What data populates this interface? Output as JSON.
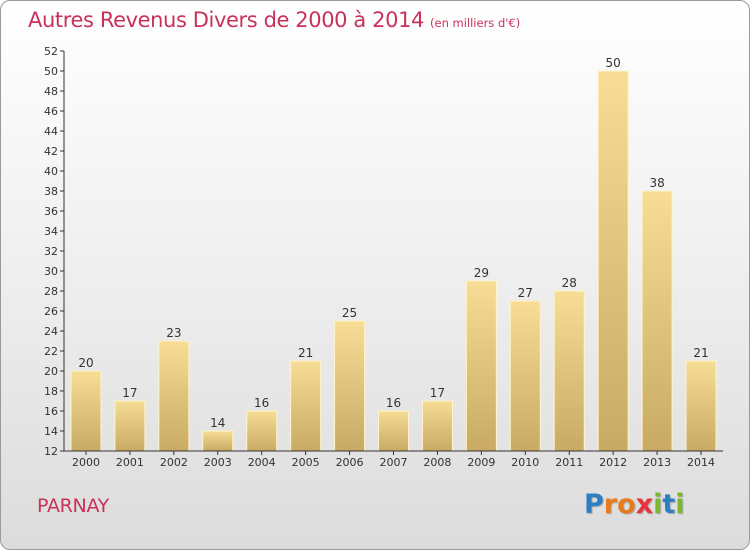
{
  "chart_data": {
    "type": "bar",
    "title": "Autres Revenus Divers de 2000 à 2014",
    "subtitle": "(en milliers d'€)",
    "categories": [
      "2000",
      "2001",
      "2002",
      "2003",
      "2004",
      "2005",
      "2006",
      "2007",
      "2008",
      "2009",
      "2010",
      "2011",
      "2012",
      "2013",
      "2014"
    ],
    "values": [
      20,
      17,
      23,
      14,
      16,
      21,
      25,
      16,
      17,
      29,
      27,
      28,
      50,
      38,
      21
    ],
    "ylim": [
      12,
      52
    ],
    "yticks": [
      12,
      14,
      16,
      18,
      20,
      22,
      24,
      26,
      28,
      30,
      32,
      34,
      36,
      38,
      40,
      42,
      44,
      46,
      48,
      50,
      52
    ],
    "xlabel": "",
    "ylabel": "",
    "grid": false,
    "colors": {
      "bar_top": "#f7dd96",
      "bar_bottom": "#c8aa64",
      "bar_edge": "#fff4cc",
      "text": "#c8325a"
    }
  },
  "place": "PARNAY",
  "logo": {
    "letters": [
      "P",
      "r",
      "o",
      "x",
      "i",
      "t",
      "i"
    ],
    "colors": [
      "#2d7fc4",
      "#e87a1e",
      "#e87a1e",
      "#e8323c",
      "#7ab829",
      "#2d7fc4",
      "#7ab829"
    ]
  }
}
